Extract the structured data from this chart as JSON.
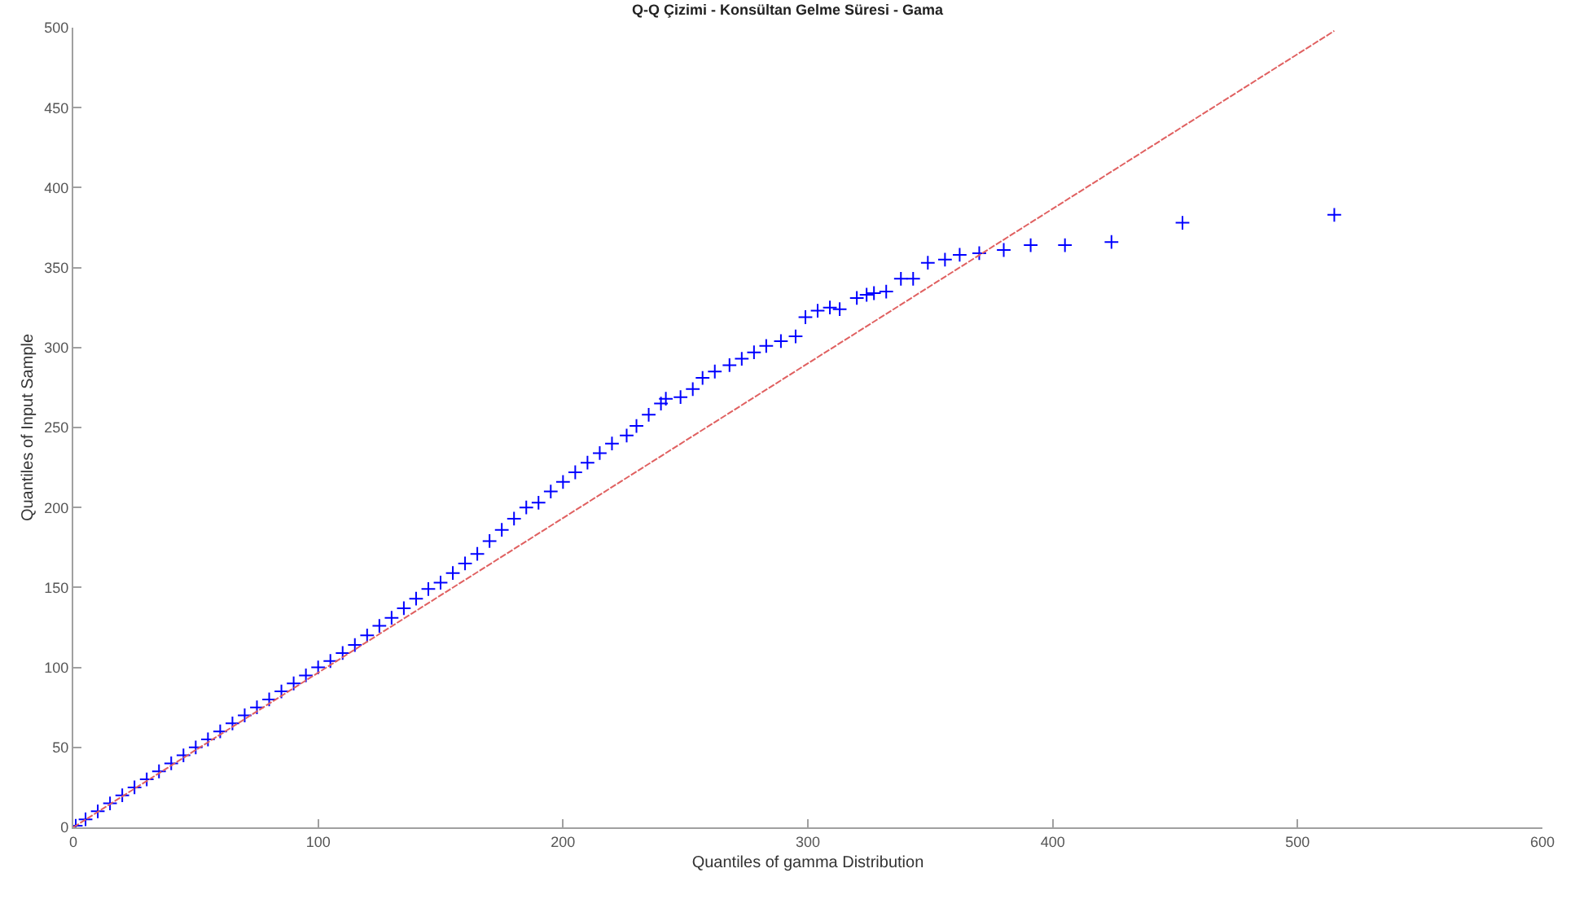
{
  "chart_data": {
    "type": "scatter",
    "title": "Q-Q Çizimi - Konsültan Gelme Süresi - Gama",
    "xlabel": "Quantiles of gamma Distribution",
    "ylabel": "Quantiles of Input Sample",
    "xlim": [
      0,
      600
    ],
    "xticks": [
      0,
      100,
      200,
      300,
      400,
      500,
      600
    ],
    "ylim": [
      0,
      500
    ],
    "yticks": [
      0,
      50,
      100,
      150,
      200,
      250,
      300,
      350,
      400,
      450,
      500
    ],
    "grid": false,
    "series": [
      {
        "marker": "cross",
        "color": "#0000ff",
        "x": [
          1,
          5,
          10,
          15,
          20,
          25,
          30,
          35,
          40,
          45,
          50,
          55,
          60,
          65,
          70,
          75,
          80,
          85,
          90,
          95,
          100,
          105,
          110,
          115,
          120,
          125,
          130,
          135,
          140,
          145,
          150,
          155,
          160,
          165,
          170,
          175,
          180,
          185,
          190,
          195,
          200,
          205,
          210,
          215,
          220,
          226,
          230,
          235,
          240,
          242,
          248,
          253,
          257,
          262,
          268,
          273,
          278,
          283,
          289,
          295,
          299,
          304,
          309,
          313,
          320,
          324,
          327,
          332,
          338,
          343,
          349,
          356,
          362,
          370,
          380,
          391,
          405,
          424,
          453,
          515
        ],
        "values": [
          1,
          5,
          10,
          15,
          20,
          25,
          30,
          35,
          40,
          45,
          50,
          55,
          60,
          65,
          70,
          75,
          80,
          85,
          90,
          95,
          100,
          104,
          109,
          114,
          120,
          126,
          131,
          137,
          143,
          149,
          153,
          159,
          165,
          171,
          179,
          186,
          193,
          200,
          203,
          210,
          216,
          222,
          228,
          234,
          240,
          245,
          251,
          258,
          265,
          268,
          269,
          274,
          281,
          285,
          289,
          293,
          297,
          301,
          304,
          307,
          319,
          323,
          325,
          324,
          331,
          333,
          334,
          335,
          343,
          343,
          353,
          355,
          358,
          359,
          361,
          364,
          364,
          366,
          378,
          383
        ]
      },
      {
        "type": "line",
        "color": "#e06060",
        "line_style": "dashed",
        "x": [
          0,
          515
        ],
        "values": [
          0,
          498
        ]
      }
    ]
  }
}
